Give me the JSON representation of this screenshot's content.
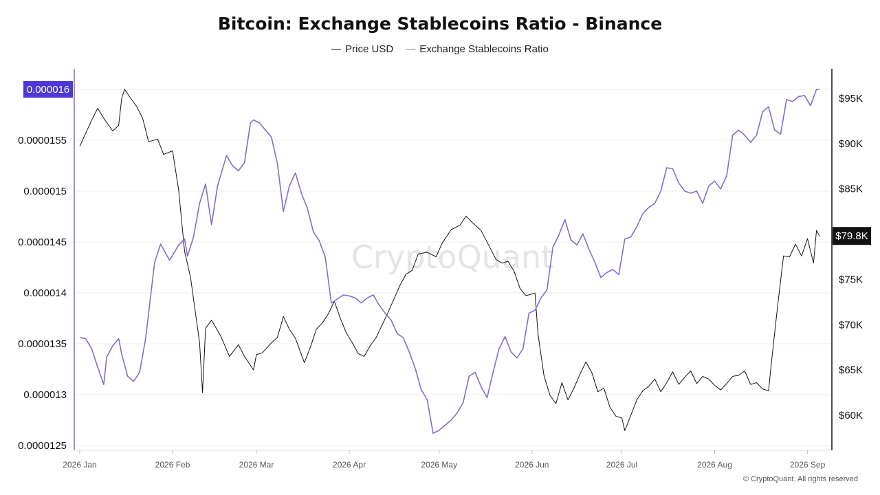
{
  "title": "Bitcoin: Exchange Stablecoins Ratio - Binance",
  "legend": {
    "price_label": "Price USD",
    "ratio_label": "Exchange Stablecoins Ratio"
  },
  "credit": "© CryptoQuant. All rights reserved",
  "watermark": "CryptoQuant",
  "colors": {
    "price": "#111111",
    "ratio": "#7b6fd0",
    "highlight": "#4b38d6",
    "grid": "#ececec",
    "watermark": "#e3e3e8"
  },
  "chart_data": {
    "type": "line",
    "title": "Bitcoin: Exchange Stablecoins Ratio - Binance",
    "x_ticks": [
      "2026 Jan",
      "2026 Feb",
      "2026 Mar",
      "2026 Apr",
      "2026 May",
      "2026 Jun",
      "2026 Jul",
      "2026 Aug",
      "2026 Sep"
    ],
    "left_axis": {
      "series": "Exchange Stablecoins Ratio",
      "ticks": [
        "0.000016",
        "0.0000155",
        "0.000015",
        "0.0000145",
        "0.000014",
        "0.0000135",
        "0.000013",
        "0.0000125"
      ],
      "range": [
        1.25e-05,
        1.6e-05
      ],
      "highlighted_tick": "0.000016"
    },
    "right_axis": {
      "series": "Price USD",
      "ticks": [
        "$95K",
        "$90K",
        "$85K",
        "$80K",
        "$75K",
        "$70K",
        "$65K",
        "$60K"
      ],
      "current_value_label": "$79.8K",
      "range": [
        57000,
        98000
      ]
    },
    "grid": true,
    "legend_placement": "top-center",
    "series": [
      {
        "name": "Price USD",
        "axis": "right",
        "points": [
          [
            "2026-01-01",
            89700
          ],
          [
            "2026-01-05",
            92600
          ],
          [
            "2026-01-07",
            93900
          ],
          [
            "2026-01-09",
            92800
          ],
          [
            "2026-01-12",
            91400
          ],
          [
            "2026-01-14",
            92000
          ],
          [
            "2026-01-15",
            95000
          ],
          [
            "2026-01-16",
            96000
          ],
          [
            "2026-01-18",
            95000
          ],
          [
            "2026-01-20",
            94100
          ],
          [
            "2026-01-22",
            92800
          ],
          [
            "2026-01-24",
            90200
          ],
          [
            "2026-01-27",
            90500
          ],
          [
            "2026-01-29",
            88800
          ],
          [
            "2026-02-01",
            89200
          ],
          [
            "2026-02-03",
            84900
          ],
          [
            "2026-02-05",
            78100
          ],
          [
            "2026-02-07",
            75200
          ],
          [
            "2026-02-10",
            68000
          ],
          [
            "2026-02-11",
            62500
          ],
          [
            "2026-02-12",
            69600
          ],
          [
            "2026-02-14",
            70500
          ],
          [
            "2026-02-17",
            68800
          ],
          [
            "2026-02-20",
            66500
          ],
          [
            "2026-02-23",
            67800
          ],
          [
            "2026-02-25",
            66500
          ],
          [
            "2026-02-28",
            65000
          ],
          [
            "2026-03-01",
            66700
          ],
          [
            "2026-03-03",
            66900
          ],
          [
            "2026-03-06",
            68000
          ],
          [
            "2026-03-08",
            68600
          ],
          [
            "2026-03-10",
            70900
          ],
          [
            "2026-03-12",
            69500
          ],
          [
            "2026-03-14",
            68500
          ],
          [
            "2026-03-17",
            65800
          ],
          [
            "2026-03-19",
            67500
          ],
          [
            "2026-03-21",
            69500
          ],
          [
            "2026-03-23",
            70200
          ],
          [
            "2026-03-25",
            71200
          ],
          [
            "2026-03-27",
            72600
          ],
          [
            "2026-03-29",
            70700
          ],
          [
            "2026-03-31",
            69100
          ],
          [
            "2026-04-02",
            68000
          ],
          [
            "2026-04-04",
            66800
          ],
          [
            "2026-04-06",
            66500
          ],
          [
            "2026-04-08",
            67700
          ],
          [
            "2026-04-10",
            68600
          ],
          [
            "2026-04-12",
            70000
          ],
          [
            "2026-04-14",
            71400
          ],
          [
            "2026-04-16",
            72900
          ],
          [
            "2026-04-18",
            74400
          ],
          [
            "2026-04-20",
            75600
          ],
          [
            "2026-04-22",
            76000
          ],
          [
            "2026-04-24",
            77800
          ],
          [
            "2026-04-27",
            78000
          ],
          [
            "2026-04-30",
            77500
          ],
          [
            "2026-05-02",
            79000
          ],
          [
            "2026-05-05",
            80500
          ],
          [
            "2026-05-08",
            81000
          ],
          [
            "2026-05-10",
            82000
          ],
          [
            "2026-05-12",
            81300
          ],
          [
            "2026-05-15",
            80400
          ],
          [
            "2026-05-18",
            78500
          ],
          [
            "2026-05-20",
            77200
          ],
          [
            "2026-05-22",
            76800
          ],
          [
            "2026-05-24",
            77000
          ],
          [
            "2026-05-26",
            75900
          ],
          [
            "2026-05-28",
            74000
          ],
          [
            "2026-05-30",
            73200
          ],
          [
            "2026-06-02",
            73500
          ],
          [
            "2026-06-03",
            69000
          ],
          [
            "2026-06-05",
            64400
          ],
          [
            "2026-06-07",
            62200
          ],
          [
            "2026-06-09",
            61300
          ],
          [
            "2026-06-11",
            63600
          ],
          [
            "2026-06-13",
            61700
          ],
          [
            "2026-06-15",
            63000
          ],
          [
            "2026-06-17",
            64500
          ],
          [
            "2026-06-19",
            65900
          ],
          [
            "2026-06-21",
            64700
          ],
          [
            "2026-06-23",
            62600
          ],
          [
            "2026-06-25",
            63000
          ],
          [
            "2026-06-27",
            60900
          ],
          [
            "2026-06-29",
            59900
          ],
          [
            "2026-07-01",
            59700
          ],
          [
            "2026-07-02",
            58300
          ],
          [
            "2026-07-04",
            60000
          ],
          [
            "2026-07-06",
            61700
          ],
          [
            "2026-07-08",
            62700
          ],
          [
            "2026-07-10",
            63200
          ],
          [
            "2026-07-12",
            64000
          ],
          [
            "2026-07-14",
            62600
          ],
          [
            "2026-07-16",
            63600
          ],
          [
            "2026-07-18",
            64800
          ],
          [
            "2026-07-20",
            63400
          ],
          [
            "2026-07-22",
            64200
          ],
          [
            "2026-07-24",
            64900
          ],
          [
            "2026-07-26",
            63500
          ],
          [
            "2026-07-28",
            64300
          ],
          [
            "2026-07-30",
            64000
          ],
          [
            "2026-08-01",
            63300
          ],
          [
            "2026-08-03",
            62800
          ],
          [
            "2026-08-05",
            63500
          ],
          [
            "2026-08-07",
            64300
          ],
          [
            "2026-08-09",
            64400
          ],
          [
            "2026-08-11",
            64900
          ],
          [
            "2026-08-13",
            63400
          ],
          [
            "2026-08-15",
            63600
          ],
          [
            "2026-08-17",
            62900
          ],
          [
            "2026-08-19",
            62700
          ],
          [
            "2026-08-20",
            66000
          ],
          [
            "2026-08-22",
            72000
          ],
          [
            "2026-08-24",
            77600
          ],
          [
            "2026-08-26",
            77500
          ],
          [
            "2026-08-28",
            78900
          ],
          [
            "2026-08-30",
            77600
          ],
          [
            "2026-09-01",
            79500
          ],
          [
            "2026-09-03",
            76800
          ],
          [
            "2026-09-04",
            80400
          ],
          [
            "2026-09-05",
            79800
          ]
        ]
      },
      {
        "name": "Exchange Stablecoins Ratio",
        "axis": "left",
        "points": [
          [
            "2026-01-01",
            1.356e-05
          ],
          [
            "2026-01-03",
            1.355e-05
          ],
          [
            "2026-01-05",
            1.345e-05
          ],
          [
            "2026-01-07",
            1.327e-05
          ],
          [
            "2026-01-09",
            1.31e-05
          ],
          [
            "2026-01-10",
            1.337e-05
          ],
          [
            "2026-01-12",
            1.348e-05
          ],
          [
            "2026-01-14",
            1.355e-05
          ],
          [
            "2026-01-15",
            1.34e-05
          ],
          [
            "2026-01-17",
            1.318e-05
          ],
          [
            "2026-01-19",
            1.313e-05
          ],
          [
            "2026-01-21",
            1.322e-05
          ],
          [
            "2026-01-23",
            1.355e-05
          ],
          [
            "2026-01-26",
            1.43e-05
          ],
          [
            "2026-01-28",
            1.448e-05
          ],
          [
            "2026-01-31",
            1.432e-05
          ],
          [
            "2026-02-03",
            1.447e-05
          ],
          [
            "2026-02-05",
            1.453e-05
          ],
          [
            "2026-02-06",
            1.436e-05
          ],
          [
            "2026-02-08",
            1.455e-05
          ],
          [
            "2026-02-10",
            1.488e-05
          ],
          [
            "2026-02-12",
            1.507e-05
          ],
          [
            "2026-02-14",
            1.467e-05
          ],
          [
            "2026-02-16",
            1.505e-05
          ],
          [
            "2026-02-19",
            1.535e-05
          ],
          [
            "2026-02-21",
            1.525e-05
          ],
          [
            "2026-02-23",
            1.52e-05
          ],
          [
            "2026-02-25",
            1.528e-05
          ],
          [
            "2026-02-27",
            1.567e-05
          ],
          [
            "2026-02-28",
            1.57e-05
          ],
          [
            "2026-03-02",
            1.567e-05
          ],
          [
            "2026-03-04",
            1.56e-05
          ],
          [
            "2026-03-06",
            1.553e-05
          ],
          [
            "2026-03-08",
            1.527e-05
          ],
          [
            "2026-03-10",
            1.48e-05
          ],
          [
            "2026-03-12",
            1.505e-05
          ],
          [
            "2026-03-14",
            1.518e-05
          ],
          [
            "2026-03-16",
            1.498e-05
          ],
          [
            "2026-03-18",
            1.483e-05
          ],
          [
            "2026-03-20",
            1.46e-05
          ],
          [
            "2026-03-22",
            1.451e-05
          ],
          [
            "2026-03-24",
            1.435e-05
          ],
          [
            "2026-03-26",
            1.39e-05
          ],
          [
            "2026-03-28",
            1.394e-05
          ],
          [
            "2026-03-30",
            1.398e-05
          ],
          [
            "2026-04-01",
            1.397e-05
          ],
          [
            "2026-04-03",
            1.395e-05
          ],
          [
            "2026-04-05",
            1.39e-05
          ],
          [
            "2026-04-07",
            1.395e-05
          ],
          [
            "2026-04-09",
            1.398e-05
          ],
          [
            "2026-04-11",
            1.388e-05
          ],
          [
            "2026-04-13",
            1.38e-05
          ],
          [
            "2026-04-15",
            1.373e-05
          ],
          [
            "2026-04-17",
            1.36e-05
          ],
          [
            "2026-04-19",
            1.356e-05
          ],
          [
            "2026-04-21",
            1.342e-05
          ],
          [
            "2026-04-23",
            1.326e-05
          ],
          [
            "2026-04-25",
            1.305e-05
          ],
          [
            "2026-04-27",
            1.295e-05
          ],
          [
            "2026-04-29",
            1.262e-05
          ],
          [
            "2026-05-01",
            1.265e-05
          ],
          [
            "2026-05-03",
            1.27e-05
          ],
          [
            "2026-05-05",
            1.275e-05
          ],
          [
            "2026-05-07",
            1.282e-05
          ],
          [
            "2026-05-09",
            1.292e-05
          ],
          [
            "2026-05-11",
            1.318e-05
          ],
          [
            "2026-05-13",
            1.322e-05
          ],
          [
            "2026-05-15",
            1.308e-05
          ],
          [
            "2026-05-17",
            1.297e-05
          ],
          [
            "2026-05-19",
            1.322e-05
          ],
          [
            "2026-05-21",
            1.345e-05
          ],
          [
            "2026-05-23",
            1.357e-05
          ],
          [
            "2026-05-25",
            1.342e-05
          ],
          [
            "2026-05-27",
            1.336e-05
          ],
          [
            "2026-05-29",
            1.345e-05
          ],
          [
            "2026-05-31",
            1.38e-05
          ],
          [
            "2026-06-02",
            1.383e-05
          ],
          [
            "2026-06-04",
            1.395e-05
          ],
          [
            "2026-06-06",
            1.403e-05
          ],
          [
            "2026-06-08",
            1.445e-05
          ],
          [
            "2026-06-10",
            1.457e-05
          ],
          [
            "2026-06-12",
            1.472e-05
          ],
          [
            "2026-06-14",
            1.452e-05
          ],
          [
            "2026-06-16",
            1.447e-05
          ],
          [
            "2026-06-18",
            1.458e-05
          ],
          [
            "2026-06-20",
            1.443e-05
          ],
          [
            "2026-06-22",
            1.43e-05
          ],
          [
            "2026-06-24",
            1.415e-05
          ],
          [
            "2026-06-26",
            1.42e-05
          ],
          [
            "2026-06-28",
            1.423e-05
          ],
          [
            "2026-06-30",
            1.418e-05
          ],
          [
            "2026-07-02",
            1.453e-05
          ],
          [
            "2026-07-04",
            1.455e-05
          ],
          [
            "2026-07-06",
            1.465e-05
          ],
          [
            "2026-07-08",
            1.478e-05
          ],
          [
            "2026-07-10",
            1.484e-05
          ],
          [
            "2026-07-12",
            1.488e-05
          ],
          [
            "2026-07-14",
            1.5e-05
          ],
          [
            "2026-07-16",
            1.523e-05
          ],
          [
            "2026-07-18",
            1.522e-05
          ],
          [
            "2026-07-20",
            1.508e-05
          ],
          [
            "2026-07-22",
            1.5e-05
          ],
          [
            "2026-07-24",
            1.498e-05
          ],
          [
            "2026-07-26",
            1.5e-05
          ],
          [
            "2026-07-28",
            1.488e-05
          ],
          [
            "2026-07-30",
            1.505e-05
          ],
          [
            "2026-08-01",
            1.51e-05
          ],
          [
            "2026-08-03",
            1.502e-05
          ],
          [
            "2026-08-05",
            1.515e-05
          ],
          [
            "2026-08-07",
            1.555e-05
          ],
          [
            "2026-08-09",
            1.56e-05
          ],
          [
            "2026-08-11",
            1.555e-05
          ],
          [
            "2026-08-13",
            1.548e-05
          ],
          [
            "2026-08-15",
            1.555e-05
          ],
          [
            "2026-08-17",
            1.578e-05
          ],
          [
            "2026-08-19",
            1.583e-05
          ],
          [
            "2026-08-21",
            1.56e-05
          ],
          [
            "2026-08-23",
            1.556e-05
          ],
          [
            "2026-08-25",
            1.59e-05
          ],
          [
            "2026-08-27",
            1.588e-05
          ],
          [
            "2026-08-29",
            1.593e-05
          ],
          [
            "2026-08-31",
            1.594e-05
          ],
          [
            "2026-09-02",
            1.584e-05
          ],
          [
            "2026-09-04",
            1.6e-05
          ],
          [
            "2026-09-05",
            1.6e-05
          ]
        ]
      }
    ]
  }
}
